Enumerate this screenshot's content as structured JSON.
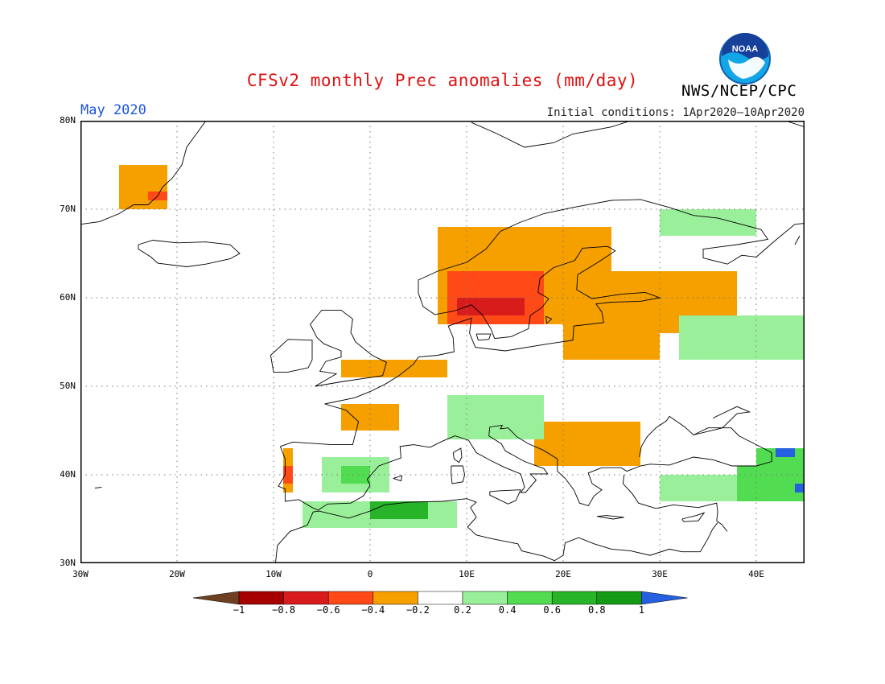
{
  "header": {
    "title": "CFSv2 monthly Prec anomalies (mm/day)",
    "period": "May 2020",
    "initial_conditions": "Initial conditions: 1Apr2020–10Apr2020",
    "agency": "NWS/NCEP/CPC",
    "logo_text": "NOAA"
  },
  "map": {
    "lon_range": [
      -30,
      45
    ],
    "lat_range": [
      30,
      80
    ],
    "grid": true,
    "lat_labels": [
      "30N",
      "40N",
      "50N",
      "60N",
      "70N",
      "80N"
    ],
    "lat_values": [
      30,
      40,
      50,
      60,
      70,
      80
    ],
    "lon_labels": [
      "30W",
      "20W",
      "10W",
      "0",
      "10E",
      "20E",
      "30E",
      "40E"
    ],
    "lon_values": [
      -30,
      -20,
      -10,
      0,
      10,
      20,
      30,
      40
    ],
    "anomaly_regions": [
      {
        "name": "Greenland SE",
        "lon": [
          -26,
          -21
        ],
        "lat": [
          70,
          75
        ],
        "value": -0.3
      },
      {
        "name": "Greenland SE core",
        "lon": [
          -23,
          -21
        ],
        "lat": [
          71,
          72
        ],
        "value": -0.5
      },
      {
        "name": "Scandinavia",
        "lon": [
          7,
          25
        ],
        "lat": [
          57,
          68
        ],
        "value": -0.3
      },
      {
        "name": "Scandinavia core",
        "lon": [
          8,
          18
        ],
        "lat": [
          57,
          63
        ],
        "value": -0.5
      },
      {
        "name": "South Norway core",
        "lon": [
          9,
          16
        ],
        "lat": [
          58,
          60
        ],
        "value": -0.7
      },
      {
        "name": "NW Russia",
        "lon": [
          25,
          38
        ],
        "lat": [
          56,
          63
        ],
        "value": -0.3
      },
      {
        "name": "Baltic",
        "lon": [
          20,
          30
        ],
        "lat": [
          53,
          57
        ],
        "value": -0.3
      },
      {
        "name": "UK/North Sea",
        "lon": [
          -3,
          8
        ],
        "lat": [
          51,
          53
        ],
        "value": -0.3
      },
      {
        "name": "France",
        "lon": [
          -3,
          3
        ],
        "lat": [
          45,
          48
        ],
        "value": -0.3
      },
      {
        "name": "Balkans",
        "lon": [
          17,
          28
        ],
        "lat": [
          41,
          46
        ],
        "value": -0.3
      },
      {
        "name": "Portugal",
        "lon": [
          -9,
          -8
        ],
        "lat": [
          38,
          43
        ],
        "value": -0.4
      },
      {
        "name": "Portugal core",
        "lon": [
          -9,
          -8
        ],
        "lat": [
          39,
          41
        ],
        "value": -0.5
      },
      {
        "name": "Barents coast",
        "lon": [
          30,
          40
        ],
        "lat": [
          67,
          70
        ],
        "value": 0.3
      },
      {
        "name": "Western Russia",
        "lon": [
          32,
          45
        ],
        "lat": [
          53,
          58
        ],
        "value": 0.3
      },
      {
        "name": "Central Europe",
        "lon": [
          8,
          18
        ],
        "lat": [
          44,
          49
        ],
        "value": 0.3
      },
      {
        "name": "Iberia",
        "lon": [
          -5,
          2
        ],
        "lat": [
          38,
          42
        ],
        "value": 0.3
      },
      {
        "name": "Iberia core",
        "lon": [
          -3,
          0
        ],
        "lat": [
          39,
          41
        ],
        "value": 0.5
      },
      {
        "name": "North Africa",
        "lon": [
          -7,
          9
        ],
        "lat": [
          34,
          37
        ],
        "value": 0.3
      },
      {
        "name": "Algeria core",
        "lon": [
          0,
          6
        ],
        "lat": [
          35,
          37
        ],
        "value": 0.7
      },
      {
        "name": "Turkey",
        "lon": [
          30,
          45
        ],
        "lat": [
          37,
          40
        ],
        "value": 0.3
      },
      {
        "name": "Anatolia east",
        "lon": [
          38,
          45
        ],
        "lat": [
          37,
          41
        ],
        "value": 0.6
      },
      {
        "name": "Caucasus",
        "lon": [
          40,
          45
        ],
        "lat": [
          40,
          43
        ],
        "value": 0.6
      },
      {
        "name": "Caucasus peak",
        "lon": [
          42,
          44
        ],
        "lat": [
          42,
          43
        ],
        "value": 1.1
      },
      {
        "name": "Caspian peak",
        "lon": [
          44,
          45
        ],
        "lat": [
          38,
          39
        ],
        "value": 1.1
      }
    ],
    "colors": {
      "ocean": "#ffffff",
      "frame": "#000000",
      "grid": "#7a7a7a",
      "coast": "#000000"
    }
  },
  "colorbar": {
    "tick_labels": [
      "−1",
      "−0.8",
      "−0.6",
      "−0.4",
      "−0.2",
      "0.2",
      "0.4",
      "0.6",
      "0.8",
      "1"
    ],
    "colors": [
      "#6e3f20",
      "#a60000",
      "#d81c1c",
      "#ff4a18",
      "#f6a000",
      "#ffffff",
      "#9af09a",
      "#52dc52",
      "#28b428",
      "#149a14",
      "#2560e0"
    ]
  }
}
